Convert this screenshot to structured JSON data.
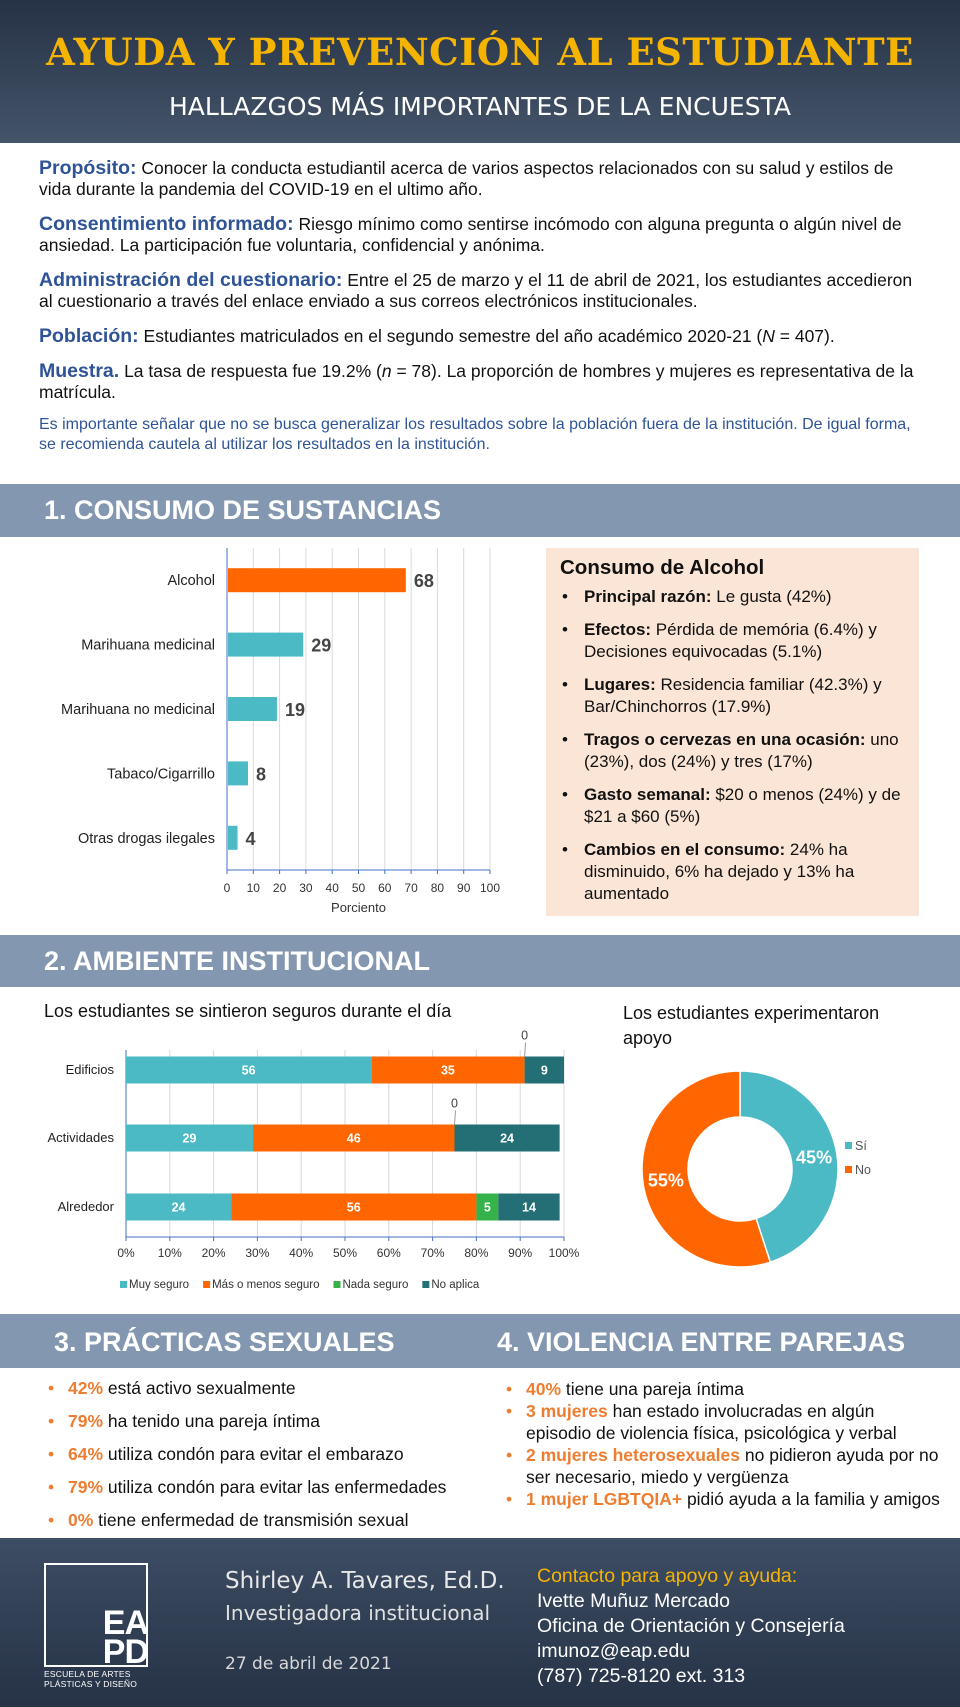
{
  "header": {
    "title": "AYUDA Y PREVENCIÓN AL ESTUDIANTE",
    "subtitle": "HALLAZGOS MÁS IMPORTANTES DE LA ENCUESTA"
  },
  "intro": {
    "proposito_label": "Propósito:",
    "proposito_text": " Conocer la conducta estudiantil acerca de varios aspectos relacionados con su salud y estilos de vida durante la pandemia del COVID-19 en el ultimo año.",
    "consentimiento_label": "Consentimiento informado:",
    "consentimiento_text": " Riesgo mínimo como sentirse incómodo con alguna pregunta o algún nivel de ansiedad. La participación fue voluntaria, confidencial y anónima.",
    "administracion_label": "Administración del cuestionario:",
    "administracion_text": " Entre el 25 de marzo y el 11 de abril de 2021, los estudiantes accedieron al cuestionario a través del enlace enviado a sus correos electrónicos institucionales.",
    "poblacion_label": "Población:",
    "poblacion_text_a": " Estudiantes matriculados en el segundo semestre del año académico 2020-21 (",
    "poblacion_n": "N",
    "poblacion_text_b": " = 407).",
    "muestra_label": "Muestra.",
    "muestra_text_a": " La tasa de respuesta fue 19.2% (",
    "muestra_n": "n",
    "muestra_text_b": " = 78). La proporción de hombres y mujeres es representativa de la matrícula.",
    "note": "Es importante señalar que no se busca generalizar los resultados sobre la población fuera de la institución. De igual forma, se recomienda cautela al utilizar los resultados en la institución."
  },
  "sections": {
    "s1": "1. CONSUMO DE SUSTANCIAS",
    "s2": "2. AMBIENTE INSTITUCIONAL",
    "s3": "3. PRÁCTICAS SEXUALES",
    "s4": "4. VIOLENCIA ENTRE PAREJAS"
  },
  "alcohol": {
    "title": "Consumo de Alcohol",
    "items": [
      {
        "bold": "Principal razón:",
        "text": " Le gusta (42%)"
      },
      {
        "bold": "Efectos:",
        "text": " Pérdida de memória (6.4%) y Decisiones equivocadas (5.1%)"
      },
      {
        "bold": "Lugares:",
        "text": " Residencia familiar (42.3%) y Bar/Chinchorros (17.9%)"
      },
      {
        "bold": "Tragos o cervezas en una ocasión:",
        "text": " uno (23%), dos (24%) y tres (17%)"
      },
      {
        "bold": "Gasto semanal:",
        "text": " $20 o menos (24%) y de $21 a $60 (5%)"
      },
      {
        "bold": "Cambios en el consumo:",
        "text": " 24% ha disminuido, 6% ha dejado y 13% ha aumentado"
      }
    ]
  },
  "chart_titles": {
    "seguros": "Los estudiantes se sintieron seguros durante el día",
    "apoyo_1": "Los estudiantes experimentaron",
    "apoyo_2": "apoyo"
  },
  "chart_data": [
    {
      "type": "bar",
      "orientation": "horizontal",
      "categories": [
        "Alcohol",
        "Marihuana medicinal",
        "Marihuana no medicinal",
        "Tabaco/Cigarrillo",
        "Otras drogas ilegales"
      ],
      "values": [
        68,
        29,
        19,
        8,
        4
      ],
      "xlabel": "Porciento",
      "xlim": [
        0,
        100
      ],
      "xticks": [
        0,
        10,
        20,
        30,
        40,
        50,
        60,
        70,
        80,
        90,
        100
      ],
      "colors": [
        "#ff6600",
        "#4bbac5",
        "#4bbac5",
        "#4bbac5",
        "#4bbac5"
      ],
      "grid": true
    },
    {
      "type": "bar",
      "orientation": "horizontal",
      "stacked": "percent",
      "categories": [
        "Edificios",
        "Actividades",
        "Alrededor"
      ],
      "series": [
        {
          "name": "Muy seguro",
          "values": [
            56,
            29,
            24
          ],
          "color": "#4bbac5"
        },
        {
          "name": "Más o menos seguro",
          "values": [
            35,
            46,
            56
          ],
          "color": "#ff6600"
        },
        {
          "name": "Nada seguro",
          "values": [
            0,
            0,
            5
          ],
          "color": "#36b24a"
        },
        {
          "name": "No aplica",
          "values": [
            9,
            24,
            14
          ],
          "color": "#236f75"
        }
      ],
      "xticks": [
        "0%",
        "10%",
        "20%",
        "30%",
        "40%",
        "50%",
        "60%",
        "70%",
        "80%",
        "90%",
        "100%"
      ],
      "legend": "bottom"
    },
    {
      "type": "pie",
      "donut": true,
      "labels": [
        "Sí",
        "No"
      ],
      "values": [
        45,
        55
      ],
      "value_labels": [
        "45%",
        "55%"
      ],
      "colors": [
        "#4bbac5",
        "#ff6600"
      ],
      "legend": "right"
    }
  ],
  "practicas": [
    {
      "num": "42%",
      "text": " está activo sexualmente"
    },
    {
      "num": "79%",
      "text": " ha tenido una pareja íntima"
    },
    {
      "num": "64%",
      "text": " utiliza condón para evitar el embarazo"
    },
    {
      "num": "79%",
      "text": " utiliza condón para evitar las enfermedades"
    },
    {
      "num": "0%",
      "text": " tiene enfermedad de transmisión sexual"
    }
  ],
  "violencia": [
    {
      "num": "40%",
      "text": " tiene una pareja íntima"
    },
    {
      "num": "3 mujeres",
      "text": " han estado involucradas en algún episodio de violencia física, psicológica y verbal"
    },
    {
      "num": "2 mujeres heterosexuales",
      "text": " no pidieron ayuda por no ser necesario, miedo y vergüenza"
    },
    {
      "num": "1 mujer LGBTQIA+",
      "text": " pidió ayuda a la familia y amigos"
    }
  ],
  "footer": {
    "logo_top": "EA",
    "logo_bottom": "PD",
    "logo_sub_1": "ESCUELA DE ARTES",
    "logo_sub_2": "PLÁSTICAS Y DISEÑO",
    "name": "Shirley A. Tavares, Ed.D.",
    "role": "Investigadora institucional",
    "date": "27 de abril de 2021",
    "contact_title": "Contacto para apoyo y ayuda:",
    "contact_name": "Ivette Muñuz Mercado",
    "contact_office": "Oficina de Orientación y Consejería",
    "contact_email": "imunoz@eap.edu",
    "contact_phone": "(787) 725-8120 ext. 313"
  }
}
